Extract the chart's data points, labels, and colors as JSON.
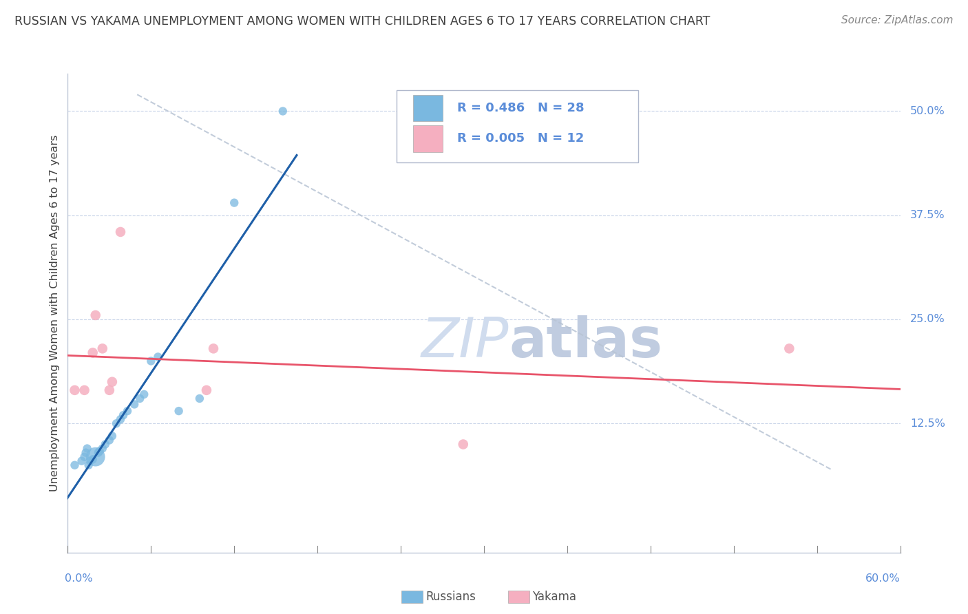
{
  "title": "RUSSIAN VS YAKAMA UNEMPLOYMENT AMONG WOMEN WITH CHILDREN AGES 6 TO 17 YEARS CORRELATION CHART",
  "source": "Source: ZipAtlas.com",
  "ylabel": "Unemployment Among Women with Children Ages 6 to 17 years",
  "xlim": [
    0.0,
    0.6
  ],
  "ylim": [
    -0.03,
    0.545
  ],
  "legend_russian_R": "0.486",
  "legend_russian_N": "28",
  "legend_yakama_R": "0.005",
  "legend_yakama_N": "12",
  "russian_color": "#7ab8e0",
  "yakama_color": "#f5afc0",
  "russian_line_color": "#1e5fa8",
  "yakama_line_color": "#e8546a",
  "ref_line_color": "#b8c4d4",
  "background_color": "#ffffff",
  "grid_color": "#c8d4e8",
  "title_color": "#404040",
  "label_color": "#5b8dd9",
  "source_color": "#888888",
  "russians_x": [
    0.005,
    0.01,
    0.012,
    0.013,
    0.014,
    0.015,
    0.016,
    0.018,
    0.02,
    0.022,
    0.023,
    0.025,
    0.027,
    0.03,
    0.032,
    0.035,
    0.038,
    0.04,
    0.043,
    0.048,
    0.052,
    0.055,
    0.06,
    0.065,
    0.08,
    0.095,
    0.12,
    0.155
  ],
  "russians_y": [
    0.075,
    0.08,
    0.085,
    0.09,
    0.095,
    0.075,
    0.08,
    0.082,
    0.085,
    0.09,
    0.092,
    0.095,
    0.1,
    0.105,
    0.11,
    0.125,
    0.13,
    0.135,
    0.14,
    0.148,
    0.155,
    0.16,
    0.2,
    0.205,
    0.14,
    0.155,
    0.39,
    0.5
  ],
  "russians_size": [
    80,
    80,
    80,
    80,
    80,
    80,
    80,
    80,
    400,
    80,
    80,
    80,
    80,
    80,
    80,
    80,
    80,
    80,
    80,
    80,
    80,
    80,
    80,
    80,
    80,
    80,
    80,
    80
  ],
  "yakama_x": [
    0.005,
    0.012,
    0.018,
    0.02,
    0.025,
    0.03,
    0.032,
    0.038,
    0.1,
    0.105,
    0.285,
    0.52
  ],
  "yakama_y": [
    0.165,
    0.165,
    0.21,
    0.255,
    0.215,
    0.165,
    0.175,
    0.355,
    0.165,
    0.215,
    0.1,
    0.215
  ],
  "watermark_zip": "ZIP",
  "watermark_atlas": "atlas",
  "watermark_color": "#d0dcee"
}
